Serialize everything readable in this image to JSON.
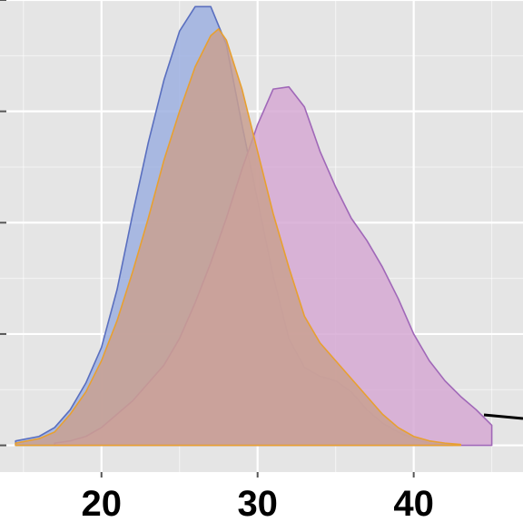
{
  "chart_data": {
    "type": "area",
    "title": "",
    "xlabel": "",
    "ylabel": "",
    "xlim": [
      13.5,
      47
    ],
    "ylim": [
      -0.006,
      0.1
    ],
    "grid": true,
    "x_ticks": [
      "20",
      "30",
      "40"
    ],
    "colors": {
      "panel": "#e5e5e5",
      "grid": "#ffffff"
    },
    "series": [
      {
        "fill": "#9db0e0",
        "stroke": "#5a6fbf",
        "points": [
          [
            14.5,
            0.001
          ],
          [
            16,
            0.002
          ],
          [
            17,
            0.004
          ],
          [
            18,
            0.008
          ],
          [
            19,
            0.014
          ],
          [
            20,
            0.022
          ],
          [
            21,
            0.035
          ],
          [
            22,
            0.052
          ],
          [
            23,
            0.068
          ],
          [
            24,
            0.082
          ],
          [
            25,
            0.093
          ],
          [
            26,
            0.0985
          ],
          [
            27,
            0.0985
          ],
          [
            28,
            0.09
          ],
          [
            29,
            0.072
          ],
          [
            30,
            0.055
          ],
          [
            31,
            0.038
          ],
          [
            32,
            0.024
          ],
          [
            33,
            0.0175
          ],
          [
            34,
            0.0155
          ],
          [
            35,
            0.0145
          ],
          [
            36,
            0.012
          ],
          [
            37,
            0.008
          ],
          [
            38,
            0.005
          ],
          [
            39,
            0.003
          ],
          [
            40,
            0.0015
          ],
          [
            41,
            0.0005
          ],
          [
            42,
            0.0002
          ],
          [
            42.5,
            0.0001
          ]
        ]
      },
      {
        "fill": "#d6a9d3",
        "stroke": "#a068b8",
        "points": [
          [
            17,
            0.0005
          ],
          [
            18,
            0.001
          ],
          [
            19,
            0.002
          ],
          [
            20,
            0.004
          ],
          [
            21,
            0.007
          ],
          [
            22,
            0.01
          ],
          [
            23,
            0.014
          ],
          [
            24,
            0.018
          ],
          [
            25,
            0.024
          ],
          [
            26,
            0.032
          ],
          [
            27,
            0.041
          ],
          [
            28,
            0.051
          ],
          [
            29,
            0.062
          ],
          [
            30,
            0.072
          ],
          [
            31,
            0.08
          ],
          [
            32,
            0.0805
          ],
          [
            33,
            0.076
          ],
          [
            34,
            0.066
          ],
          [
            35,
            0.058
          ],
          [
            36,
            0.051
          ],
          [
            37,
            0.046
          ],
          [
            38,
            0.04
          ],
          [
            39,
            0.033
          ],
          [
            40,
            0.025
          ],
          [
            41,
            0.019
          ],
          [
            42,
            0.0145
          ],
          [
            43,
            0.011
          ],
          [
            44,
            0.008
          ],
          [
            45,
            0.0045
          ]
        ]
      },
      {
        "fill": "#c9a091",
        "stroke": "#e8a030",
        "points": [
          [
            14.5,
            0.0005
          ],
          [
            16,
            0.0015
          ],
          [
            17,
            0.003
          ],
          [
            18,
            0.007
          ],
          [
            19,
            0.012
          ],
          [
            20,
            0.019
          ],
          [
            21,
            0.028
          ],
          [
            22,
            0.039
          ],
          [
            23,
            0.051
          ],
          [
            24,
            0.064
          ],
          [
            25,
            0.075
          ],
          [
            26,
            0.085
          ],
          [
            27,
            0.092
          ],
          [
            27.5,
            0.0935
          ],
          [
            28,
            0.091
          ],
          [
            29,
            0.08
          ],
          [
            30,
            0.066
          ],
          [
            31,
            0.052
          ],
          [
            32,
            0.04
          ],
          [
            33,
            0.029
          ],
          [
            34,
            0.023
          ],
          [
            35,
            0.019
          ],
          [
            36,
            0.015
          ],
          [
            37,
            0.011
          ],
          [
            38,
            0.007
          ],
          [
            39,
            0.004
          ],
          [
            40,
            0.002
          ],
          [
            41,
            0.001
          ],
          [
            42,
            0.0005
          ],
          [
            43,
            0.0002
          ]
        ]
      }
    ]
  }
}
